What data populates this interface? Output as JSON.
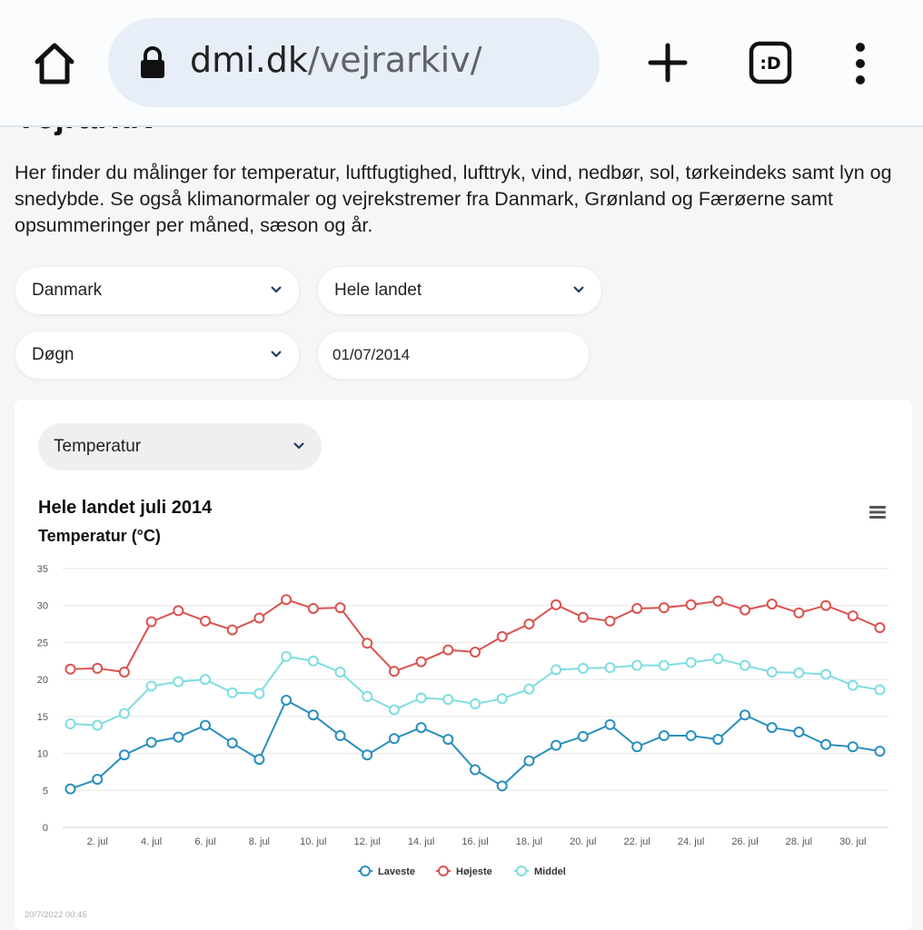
{
  "browser": {
    "url_host": "dmi.dk",
    "url_path": "/vejrarkiv/",
    "home_icon": "home-icon",
    "lock_icon": "lock-icon",
    "plus_icon": "plus-icon",
    "tabs_icon": "tab-switcher-icon",
    "tabs_label": ":D",
    "menu_icon": "more-vert-icon"
  },
  "page": {
    "title": "Vejrarkiv",
    "intro": "Her finder du målinger for temperatur, luftfugtighed, lufttryk, vind, nedbør, sol, tørkeindeks samt lyn og snedybde. Se også klimanormaler og vejrekstremer fra Danmark, Grønland og Færøerne samt opsummeringer per måned, sæson og år."
  },
  "filters": {
    "country": "Danmark",
    "region": "Hele landet",
    "period": "Døgn",
    "date": "01/07/2014",
    "parameter": "Temperatur"
  },
  "chart_data": {
    "type": "line",
    "title": "Hele landet juli 2014",
    "subtitle": "Temperatur (°C)",
    "x": [
      1,
      2,
      3,
      4,
      5,
      6,
      7,
      8,
      9,
      10,
      11,
      12,
      13,
      14,
      15,
      16,
      17,
      18,
      19,
      20,
      21,
      22,
      23,
      24,
      25,
      26,
      27,
      28,
      29,
      30,
      31
    ],
    "x_tick_labels": [
      "2. jul",
      "4. jul",
      "6. jul",
      "8. jul",
      "10. jul",
      "12. jul",
      "14. jul",
      "16. jul",
      "18. jul",
      "20. jul",
      "22. jul",
      "24. jul",
      "26. jul",
      "28. jul",
      "30. jul"
    ],
    "x_tick_days": [
      2,
      4,
      6,
      8,
      10,
      12,
      14,
      16,
      18,
      20,
      22,
      24,
      26,
      28,
      30
    ],
    "ylim": [
      0,
      35
    ],
    "yticks": [
      0,
      5,
      10,
      15,
      20,
      25,
      30,
      35
    ],
    "grid": true,
    "legend_position": "bottom-center",
    "series": [
      {
        "name": "Laveste",
        "color": "#2a8fbd",
        "values": [
          5.2,
          6.5,
          9.8,
          11.5,
          12.2,
          13.8,
          11.4,
          9.2,
          17.2,
          15.2,
          12.4,
          9.8,
          12.0,
          13.5,
          11.9,
          7.8,
          5.6,
          9.0,
          11.1,
          12.3,
          13.9,
          10.9,
          12.4,
          12.4,
          11.9,
          15.2,
          13.5,
          12.9,
          11.2,
          10.9,
          10.3
        ]
      },
      {
        "name": "Højeste",
        "color": "#d9534f",
        "values": [
          21.4,
          21.5,
          21.0,
          27.8,
          29.3,
          27.9,
          26.7,
          28.3,
          30.8,
          29.6,
          29.7,
          24.9,
          21.1,
          22.4,
          24.0,
          23.7,
          25.8,
          27.5,
          30.1,
          28.4,
          27.9,
          29.6,
          29.7,
          30.1,
          30.6,
          29.4,
          30.2,
          29.0,
          30.0,
          28.6,
          27.0
        ]
      },
      {
        "name": "Middel",
        "color": "#7fdde0",
        "values": [
          14.0,
          13.8,
          15.4,
          19.1,
          19.7,
          20.0,
          18.2,
          18.1,
          23.1,
          22.5,
          21.0,
          17.7,
          15.9,
          17.5,
          17.3,
          16.7,
          17.4,
          18.7,
          21.3,
          21.5,
          21.6,
          21.9,
          21.9,
          22.3,
          22.8,
          21.9,
          21.0,
          20.9,
          20.7,
          19.2,
          18.6
        ]
      }
    ]
  },
  "chart": {
    "menu_icon": "chart-context-menu-icon",
    "timestamp": "20/7/2022 00:45"
  }
}
